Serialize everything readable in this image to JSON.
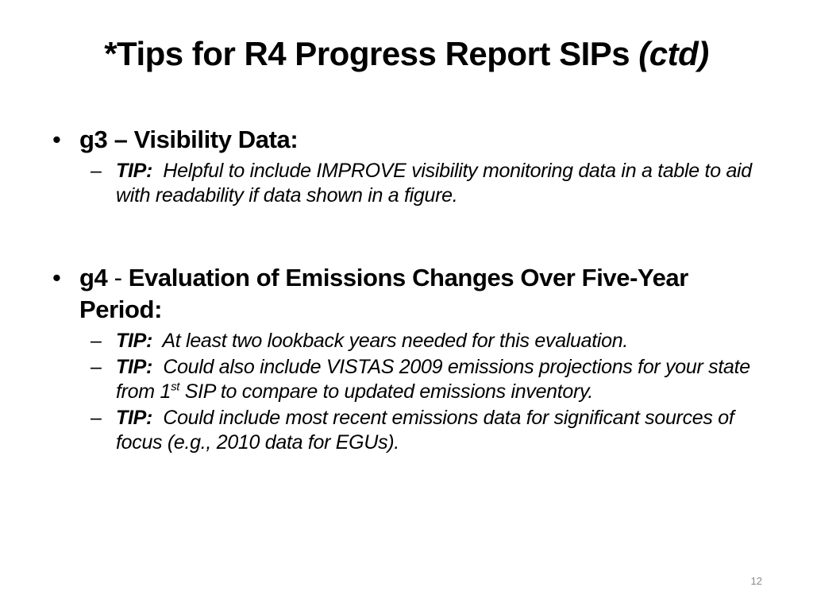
{
  "slide": {
    "title": {
      "main": "*Tips for R4 Progress Report SIPs ",
      "italic": "(ctd)"
    },
    "bullets": [
      {
        "marker": "•",
        "code": "g3 – Visibility Data:",
        "separator": "",
        "heading": "",
        "tips": [
          {
            "marker": "–",
            "label": "TIP:",
            "text": "  Helpful to include IMPROVE visibility monitoring data in a table to aid with readability if data shown in a figure.",
            "sup": "",
            "text_after": ""
          }
        ]
      },
      {
        "marker": "•",
        "code": "g4",
        "separator": " - ",
        "heading": "Evaluation of Emissions Changes Over Five-Year Period:",
        "tips": [
          {
            "marker": "–",
            "label": "TIP:",
            "text": "  At least two lookback years needed for this evaluation.",
            "sup": "",
            "text_after": ""
          },
          {
            "marker": "–",
            "label": "TIP:",
            "text": "  Could also include VISTAS 2009 emissions projections for your state from 1",
            "sup": "st",
            "text_after": " SIP to compare to updated emissions inventory."
          },
          {
            "marker": "–",
            "label": "TIP:",
            "text": "  Could include most recent emissions data for significant sources of focus (e.g., 2010 data for EGUs).",
            "sup": "",
            "text_after": ""
          }
        ]
      }
    ],
    "page_number": "12"
  }
}
